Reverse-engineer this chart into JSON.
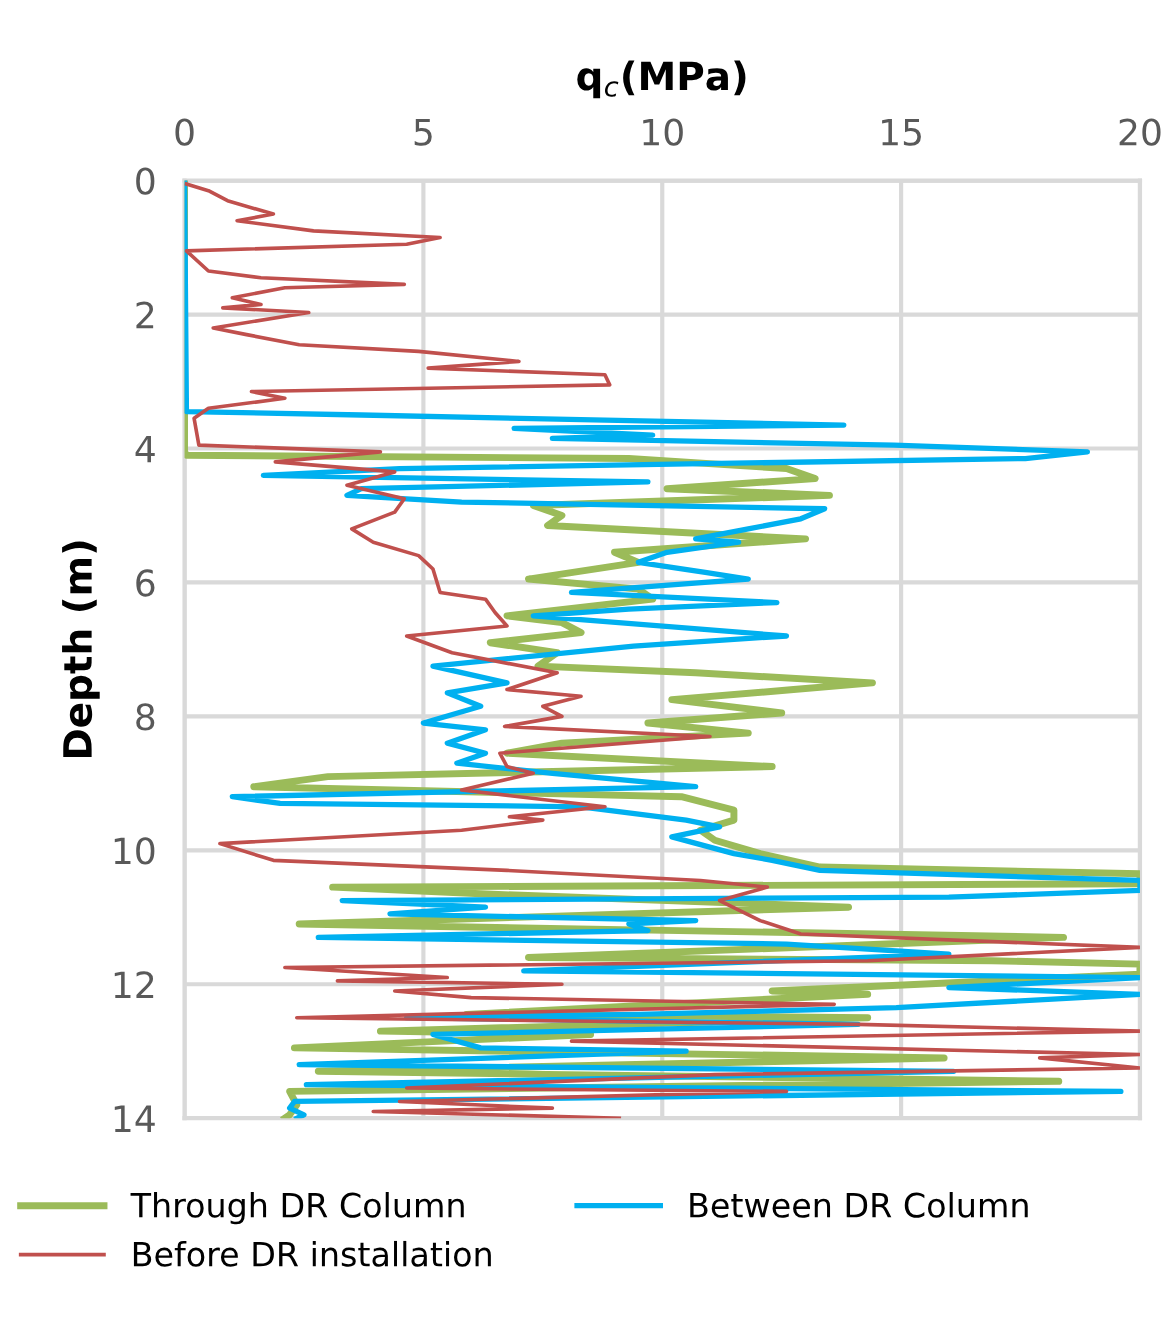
{
  "chart_data": {
    "type": "line",
    "xlabel": "q$_{c}$(MPa)",
    "ylabel": "Depth (m)",
    "xlim": [
      0,
      20
    ],
    "xticks": [
      0,
      5,
      10,
      15,
      20
    ],
    "ylim": [
      14,
      0
    ],
    "yticks": [
      0,
      2,
      4,
      6,
      8,
      10,
      12,
      14
    ],
    "grid": true,
    "legend": "bottom",
    "marker": "none",
    "line_style": "solid",
    "series": [
      {
        "name": "Through DR Column",
        "color": "#9bbb59",
        "x": [
          0,
          0,
          0.04,
          9.3,
          12.6,
          13.2,
          10.1,
          13.5,
          7.3,
          7.9,
          7.6,
          13.0,
          9.0,
          9.5,
          7.2,
          9.5,
          9.8,
          6.75,
          7.9,
          8.3,
          6.4,
          7.8,
          7.4,
          10.7,
          14.4,
          12.75,
          10.2,
          12.5,
          9.7,
          11.8,
          7.9,
          6.75,
          12.3,
          3.0,
          1.45,
          10.4,
          11.5,
          11.5,
          10.8,
          11.1,
          12.05,
          13.3,
          20,
          20,
          3.1,
          6.2,
          13.9,
          2.4,
          18.4,
          7.2,
          16.9,
          20,
          20,
          12.3,
          14.3,
          5.9,
          14.3,
          4.1,
          8.5,
          2.3,
          15.9,
          2.8,
          18.3,
          2.2,
          2.35,
          2.2,
          2.1
        ],
        "values": [
          0,
          4.05,
          4.1,
          4.15,
          4.3,
          4.45,
          4.6,
          4.7,
          4.85,
          5.0,
          5.15,
          5.35,
          5.55,
          5.7,
          5.95,
          6.1,
          6.25,
          6.5,
          6.6,
          6.75,
          6.9,
          7.05,
          7.25,
          7.35,
          7.5,
          7.6,
          7.75,
          7.95,
          8.1,
          8.25,
          8.4,
          8.55,
          8.75,
          8.9,
          9.05,
          9.2,
          9.4,
          9.55,
          9.7,
          9.85,
          10.05,
          10.25,
          10.35,
          10.5,
          10.55,
          10.65,
          10.85,
          11.1,
          11.3,
          11.6,
          11.65,
          11.7,
          11.85,
          12.1,
          12.15,
          12.45,
          12.5,
          12.7,
          12.75,
          12.95,
          13.1,
          13.3,
          13.45,
          13.6,
          13.8,
          13.95,
          14.0
        ]
      },
      {
        "name": "Between DR Column",
        "color": "#00b0f0",
        "x": [
          0,
          0.04,
          3.7,
          13.8,
          6.9,
          9.8,
          7.7,
          14.85,
          18.9,
          17.6,
          4.5,
          1.65,
          9.7,
          3.7,
          3.4,
          5.8,
          13.4,
          12.9,
          11.8,
          10.7,
          11.6,
          10.1,
          9.5,
          10.9,
          11.8,
          8.1,
          12.4,
          9.3,
          7.3,
          12.6,
          9.4,
          5.2,
          6.75,
          5.5,
          6.2,
          5.0,
          6.3,
          5.5,
          6.3,
          5.7,
          7.7,
          10.7,
          1.0,
          2.0,
          8.3,
          10.5,
          11.2,
          10.2,
          11.5,
          12.3,
          13.3,
          20,
          20,
          16.0,
          3.3,
          6.3,
          4.3,
          10.7,
          9.3,
          9.7,
          2.8,
          12.6,
          16.0,
          7.1,
          20,
          16.0,
          20,
          14.9,
          9.5,
          4.65,
          14.1,
          5.2,
          6.2,
          10.5,
          2.4,
          16.1,
          2.55,
          19.6,
          2.3,
          2.2,
          2.5,
          2.35
        ],
        "values": [
          0,
          3.45,
          3.5,
          3.65,
          3.7,
          3.8,
          3.85,
          3.95,
          4.05,
          4.15,
          4.3,
          4.4,
          4.5,
          4.6,
          4.7,
          4.8,
          4.9,
          5.05,
          5.2,
          5.35,
          5.4,
          5.55,
          5.7,
          5.85,
          5.95,
          6.15,
          6.3,
          6.4,
          6.5,
          6.8,
          6.95,
          7.25,
          7.5,
          7.65,
          7.85,
          8.1,
          8.2,
          8.4,
          8.55,
          8.7,
          8.85,
          9.05,
          9.2,
          9.3,
          9.35,
          9.55,
          9.65,
          9.8,
          10.05,
          10.15,
          10.3,
          10.45,
          10.6,
          10.7,
          10.75,
          10.85,
          10.95,
          11.05,
          11.1,
          11.2,
          11.3,
          11.4,
          11.55,
          11.8,
          11.9,
          12.05,
          12.15,
          12.35,
          12.45,
          12.5,
          12.6,
          12.75,
          12.95,
          13.0,
          13.2,
          13.3,
          13.5,
          13.6,
          13.75,
          13.85,
          13.95,
          14.0
        ]
      },
      {
        "name": "Before DR installation",
        "color": "#c0504d",
        "x": [
          0.04,
          0.5,
          0.9,
          1.86,
          1.1,
          2.7,
          5.35,
          4.65,
          0.04,
          0.5,
          1.6,
          4.6,
          2.1,
          1.0,
          1.6,
          0.8,
          2.6,
          0.6,
          1.3,
          2.4,
          4.9,
          7.0,
          5.1,
          8.8,
          8.9,
          1.4,
          2.1,
          0.5,
          0.2,
          0.3,
          4.1,
          1.9,
          4.4,
          3.4,
          4.6,
          4.4,
          3.5,
          3.95,
          4.9,
          5.2,
          5.35,
          6.3,
          6.5,
          6.75,
          4.65,
          5.6,
          7.8,
          6.75,
          8.3,
          7.5,
          7.9,
          6.7,
          11.0,
          6.6,
          6.75,
          7.3,
          5.8,
          8.8,
          6.8,
          7.5,
          5.8,
          0.74,
          1.86,
          6.75,
          10.8,
          12.2,
          11.2,
          12.05,
          12.9,
          20,
          14.3,
          2.1,
          5.5,
          3.2,
          7.9,
          4.4,
          6.0,
          13.6,
          2.35,
          14.1,
          20,
          8.1,
          20,
          17.9,
          20,
          11.1,
          4.65,
          12.6,
          4.5,
          7.7,
          3.95,
          9.1
        ],
        "values": [
          0.05,
          0.15,
          0.3,
          0.5,
          0.6,
          0.75,
          0.85,
          0.95,
          1.05,
          1.35,
          1.45,
          1.55,
          1.6,
          1.75,
          1.85,
          1.9,
          1.97,
          2.2,
          2.3,
          2.45,
          2.55,
          2.7,
          2.8,
          2.9,
          3.05,
          3.15,
          3.25,
          3.4,
          3.55,
          3.95,
          4.05,
          4.2,
          4.35,
          4.55,
          4.75,
          4.95,
          5.2,
          5.4,
          5.6,
          5.8,
          6.15,
          6.25,
          6.45,
          6.65,
          6.8,
          7.05,
          7.35,
          7.6,
          7.7,
          7.85,
          8.0,
          8.15,
          8.3,
          8.55,
          8.75,
          8.85,
          9.1,
          9.35,
          9.5,
          9.55,
          9.7,
          9.9,
          10.15,
          10.3,
          10.45,
          10.55,
          10.75,
          11.05,
          11.25,
          11.45,
          11.65,
          11.75,
          11.9,
          11.95,
          12.0,
          12.1,
          12.2,
          12.3,
          12.5,
          12.6,
          12.7,
          12.85,
          13.05,
          13.1,
          13.25,
          13.35,
          13.55,
          13.6,
          13.75,
          13.85,
          13.9,
          14.0
        ]
      }
    ]
  }
}
